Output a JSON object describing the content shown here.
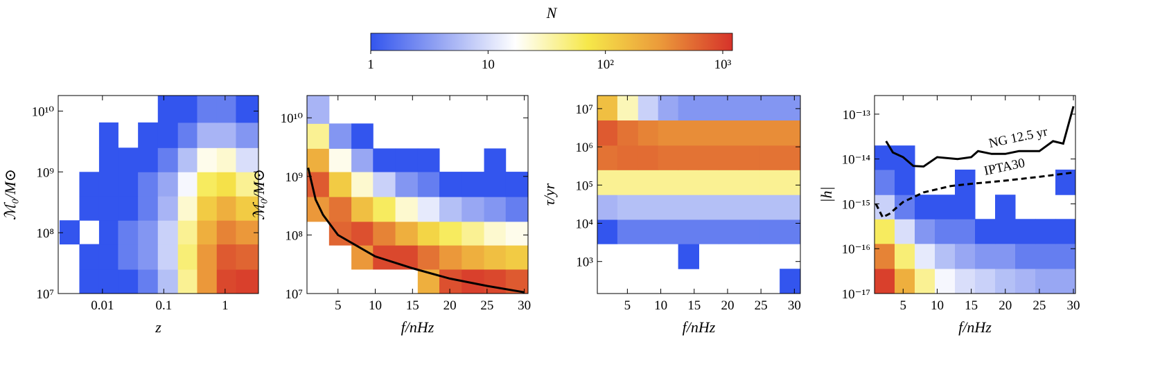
{
  "chart_data": [
    {
      "type": "colorbar",
      "title": "N",
      "clim": [
        1,
        1210
      ],
      "scale": "log",
      "colormap": [
        "#3355ee",
        "#9aa9f3",
        "#ffffff",
        "#f6e84a",
        "#eb9a3a",
        "#d6322a"
      ],
      "ticks": [
        1,
        10,
        {
          "value": 100,
          "label": "10²"
        },
        {
          "value": 1000,
          "label": "10³"
        }
      ]
    },
    {
      "type": "heatmap",
      "xlabel": "z",
      "ylabel": "ℳ₀/M⊙",
      "xscale": "log",
      "yscale": "log",
      "xlim": [
        0.0019,
        3.5
      ],
      "ylim": [
        10000000,
        18000000000
      ],
      "xticks": [
        0.01,
        0.1,
        1
      ],
      "yticks": [
        {
          "value": 10000000,
          "label": "10⁷"
        },
        {
          "value": 100000000,
          "label": "10⁸"
        },
        {
          "value": 1000000000,
          "label": "10⁹"
        },
        {
          "value": 10000000000,
          "label": "10¹⁰"
        }
      ],
      "xbins": [
        0.002,
        0.0042,
        0.0088,
        0.018,
        0.038,
        0.08,
        0.17,
        0.35,
        0.73,
        1.5,
        3.5
      ],
      "ybins": [
        10000000,
        25000000,
        65000000,
        160000000,
        400000000,
        1000000000,
        2500000000,
        6500000000,
        18000000000
      ],
      "counts": [
        [
          null,
          1,
          1,
          1,
          2,
          6,
          40,
          300,
          900,
          1000
        ],
        [
          null,
          1,
          1,
          2,
          3,
          8,
          50,
          300,
          700,
          600
        ],
        [
          1,
          null,
          1,
          2,
          3,
          8,
          40,
          200,
          400,
          300
        ],
        [
          null,
          1,
          1,
          1,
          2,
          5,
          25,
          120,
          200,
          120
        ],
        [
          null,
          1,
          1,
          1,
          2,
          4,
          15,
          60,
          80,
          40
        ],
        [
          null,
          null,
          1,
          1,
          1,
          2,
          6,
          20,
          25,
          10
        ],
        [
          null,
          null,
          1,
          null,
          1,
          1,
          2,
          5,
          5,
          3
        ],
        [
          null,
          null,
          null,
          null,
          null,
          1,
          1,
          2,
          2,
          1
        ]
      ]
    },
    {
      "type": "heatmap",
      "xlabel": "f/nHz",
      "ylabel": "ℳ₀/M⊙",
      "xscale": "linear",
      "yscale": "log",
      "xlim": [
        0.84,
        30.5
      ],
      "ylim": [
        10000000,
        24000000000
      ],
      "xticks": [
        5,
        10,
        15,
        20,
        25,
        30
      ],
      "yticks": [
        {
          "value": 10000000,
          "label": "10⁷"
        },
        {
          "value": 100000000,
          "label": "10⁸"
        },
        {
          "value": 1000000000,
          "label": "10⁹"
        },
        {
          "value": 10000000000,
          "label": "10¹⁰"
        }
      ],
      "xbins": [
        0.84,
        3.8,
        6.8,
        9.7,
        12.7,
        15.7,
        18.6,
        21.6,
        24.6,
        27.5,
        30.5
      ],
      "ybins": [
        10000000,
        26000000,
        67000000,
        170000000,
        450000000,
        1200000000,
        3000000000,
        8000000000,
        24000000000
      ],
      "counts": [
        [
          null,
          null,
          null,
          null,
          null,
          200,
          800,
          1000,
          900,
          700
        ],
        [
          null,
          null,
          300,
          900,
          900,
          500,
          300,
          200,
          150,
          120
        ],
        [
          null,
          600,
          800,
          400,
          200,
          100,
          60,
          40,
          25,
          20
        ],
        [
          300,
          500,
          150,
          60,
          25,
          12,
          6,
          4,
          3,
          2
        ],
        [
          700,
          120,
          25,
          8,
          3,
          2,
          1,
          1,
          1,
          1
        ],
        [
          200,
          20,
          4,
          1,
          1,
          1,
          null,
          null,
          1,
          null
        ],
        [
          40,
          3,
          1,
          null,
          null,
          null,
          null,
          null,
          null,
          null
        ],
        [
          5,
          null,
          null,
          null,
          null,
          null,
          null,
          null,
          null,
          null
        ]
      ],
      "lines": [
        {
          "color": "#000000",
          "style": "solid",
          "x": [
            1,
            2,
            3,
            5,
            10,
            15,
            20,
            25,
            30
          ],
          "values": [
            1400000000,
            400000000,
            220000000,
            100000000,
            43000000,
            27000000,
            18000000,
            13500000,
            10500000
          ]
        }
      ]
    },
    {
      "type": "heatmap",
      "xlabel": "f/nHz",
      "ylabel": "τ/yr",
      "xscale": "linear",
      "yscale": "log",
      "xlim": [
        0.5,
        30.9
      ],
      "ylim": [
        145,
        22000000
      ],
      "xticks": [
        5,
        10,
        15,
        20,
        25,
        30
      ],
      "yticks": [
        {
          "value": 1000,
          "label": "10³"
        },
        {
          "value": 10000,
          "label": "10⁴"
        },
        {
          "value": 100000,
          "label": "10⁵"
        },
        {
          "value": 1000000,
          "label": "10⁶"
        },
        {
          "value": 10000000,
          "label": "10⁷"
        }
      ],
      "xbins": [
        0.5,
        3.5,
        6.6,
        9.6,
        12.6,
        15.7,
        18.7,
        21.7,
        24.8,
        27.8,
        30.9
      ],
      "ybins": [
        145,
        645,
        2900,
        12600,
        56000,
        250000,
        1100000,
        5000000,
        22000000
      ],
      "counts": [
        [
          null,
          null,
          null,
          null,
          null,
          null,
          null,
          null,
          null,
          1
        ],
        [
          null,
          null,
          null,
          null,
          1,
          null,
          null,
          null,
          null,
          null
        ],
        [
          1,
          2,
          2,
          2,
          2,
          2,
          2,
          2,
          2,
          2
        ],
        [
          5,
          6,
          6,
          6,
          6,
          6,
          6,
          6,
          6,
          6
        ],
        [
          40,
          40,
          40,
          40,
          40,
          40,
          40,
          40,
          40,
          40
        ],
        [
          500,
          550,
          550,
          500,
          500,
          500,
          500,
          500,
          500,
          500
        ],
        [
          700,
          500,
          400,
          350,
          350,
          350,
          350,
          350,
          350,
          350
        ],
        [
          150,
          30,
          8,
          4,
          3,
          3,
          3,
          3,
          3,
          3
        ]
      ]
    },
    {
      "type": "heatmap",
      "xlabel": "f/nHz",
      "ylabel": "|h|",
      "xscale": "linear",
      "yscale": "log",
      "xlim": [
        0.8,
        30.3
      ],
      "ylim": [
        1e-17,
        2.6e-13
      ],
      "xticks": [
        5,
        10,
        15,
        20,
        25,
        30
      ],
      "yticks": [
        {
          "value": 1e-17,
          "label": "10⁻¹⁷"
        },
        {
          "value": 1e-16,
          "label": "10⁻¹⁶"
        },
        {
          "value": 1e-15,
          "label": "10⁻¹⁵"
        },
        {
          "value": 1e-14,
          "label": "10⁻¹⁴"
        },
        {
          "value": 1e-13,
          "label": "10⁻¹³"
        }
      ],
      "xbins": [
        0.8,
        3.75,
        6.7,
        9.65,
        12.6,
        15.55,
        18.5,
        21.45,
        24.4,
        27.35,
        30.3
      ],
      "ybins": [
        1e-17,
        3.6e-17,
        1.3e-16,
        4.6e-16,
        1.6e-15,
        5.8e-15,
        2e-14,
        7.4e-14,
        2.6e-13
      ],
      "counts": [
        [
          1000,
          200,
          40,
          15,
          10,
          8,
          6,
          5,
          4,
          4
        ],
        [
          400,
          50,
          12,
          6,
          4,
          3,
          3,
          2,
          2,
          2
        ],
        [
          60,
          10,
          3,
          2,
          2,
          1,
          1,
          1,
          1,
          1
        ],
        [
          8,
          2,
          1,
          1,
          1,
          null,
          1,
          null,
          null,
          null
        ],
        [
          2,
          1,
          null,
          null,
          1,
          null,
          null,
          null,
          null,
          1
        ],
        [
          1,
          1,
          null,
          null,
          null,
          null,
          null,
          null,
          null,
          null
        ],
        [
          null,
          null,
          null,
          null,
          null,
          null,
          null,
          null,
          null,
          null
        ],
        [
          null,
          null,
          null,
          null,
          null,
          null,
          null,
          null,
          null,
          null
        ]
      ],
      "lines": [
        {
          "name": "NG 12.5 yr",
          "color": "#000000",
          "style": "solid",
          "x": [
            2.5,
            3.5,
            5,
            6.5,
            8,
            10,
            13,
            15,
            16,
            18,
            20,
            22,
            25,
            27,
            28.5,
            30
          ],
          "values": [
            2.5e-14,
            1.4e-14,
            1.1e-14,
            7e-15,
            6.8e-15,
            1.1e-14,
            1e-14,
            1.1e-14,
            1.5e-14,
            1.3e-14,
            1.3e-14,
            1.5e-14,
            1.5e-14,
            2.5e-14,
            2.2e-14,
            1.5e-13
          ]
        },
        {
          "name": "IPTA30",
          "color": "#000000",
          "style": "dashed",
          "x": [
            1,
            2,
            3,
            5,
            8,
            12,
            15,
            20,
            25,
            30
          ],
          "values": [
            1e-15,
            5e-16,
            6e-16,
            1.1e-15,
            1.8e-15,
            2.5e-15,
            2.8e-15,
            3.3e-15,
            4e-15,
            5e-15
          ]
        }
      ]
    }
  ]
}
